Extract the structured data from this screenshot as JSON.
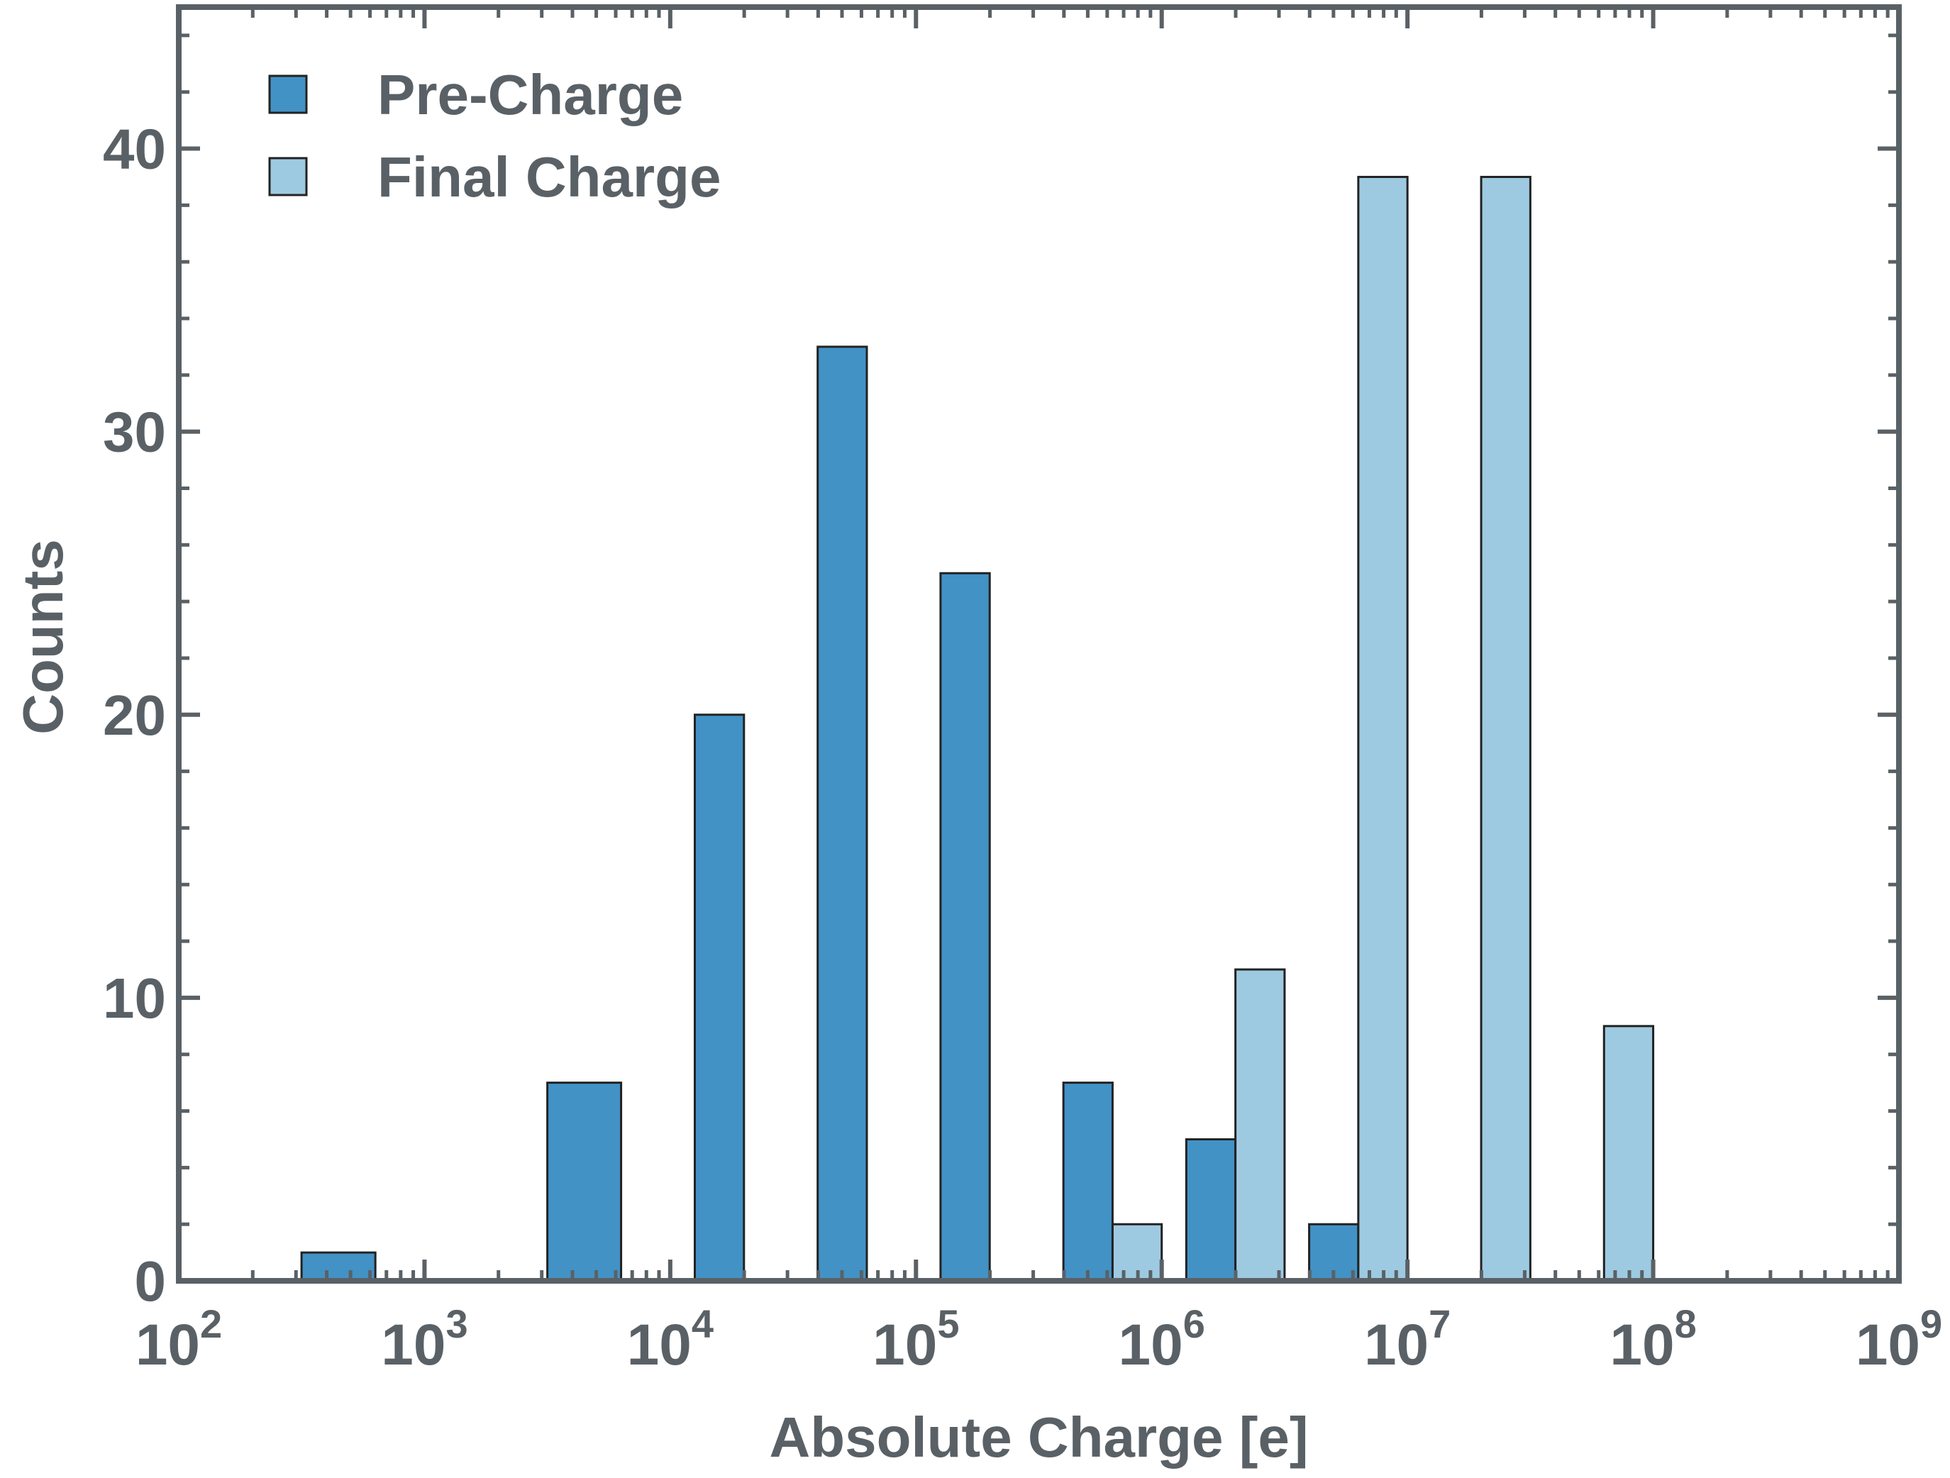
{
  "chart_data": {
    "type": "bar",
    "title": "",
    "xlabel": "Absolute Charge [e]",
    "ylabel": "Counts",
    "x_scale": "log10",
    "xlim": [
      100,
      1000000000
    ],
    "ylim": [
      0,
      45
    ],
    "x_ticks": [
      {
        "base": "10",
        "exp": "2",
        "value": 100
      },
      {
        "base": "10",
        "exp": "3",
        "value": 1000
      },
      {
        "base": "10",
        "exp": "4",
        "value": 10000
      },
      {
        "base": "10",
        "exp": "5",
        "value": 100000
      },
      {
        "base": "10",
        "exp": "6",
        "value": 1000000
      },
      {
        "base": "10",
        "exp": "7",
        "value": 10000000
      },
      {
        "base": "10",
        "exp": "8",
        "value": 100000000
      },
      {
        "base": "10",
        "exp": "9",
        "value": 1000000000
      }
    ],
    "y_ticks": [
      "0",
      "10",
      "20",
      "30",
      "40"
    ],
    "grid": false,
    "legend_position": "top-left",
    "frame_color": "#5a6166",
    "series": [
      {
        "name": "Pre-Charge",
        "color": "#4292c6",
        "bars": [
          {
            "x_start": 316,
            "x_end": 631,
            "count": 1
          },
          {
            "x_start": 3162,
            "x_end": 6310,
            "count": 7
          },
          {
            "x_start": 12589,
            "x_end": 19953,
            "count": 20
          },
          {
            "x_start": 39811,
            "x_end": 63096,
            "count": 33
          },
          {
            "x_start": 125893,
            "x_end": 199526,
            "count": 25
          },
          {
            "x_start": 398107,
            "x_end": 630957,
            "count": 7
          },
          {
            "x_start": 1258925,
            "x_end": 1995262,
            "count": 5
          },
          {
            "x_start": 3981072,
            "x_end": 6309573,
            "count": 2
          }
        ]
      },
      {
        "name": "Final Charge",
        "color": "#9ecae1",
        "bars": [
          {
            "x_start": 630957,
            "x_end": 1000000,
            "count": 2
          },
          {
            "x_start": 1995262,
            "x_end": 3162278,
            "count": 11
          },
          {
            "x_start": 6309573,
            "x_end": 10000000,
            "count": 39
          },
          {
            "x_start": 19952623,
            "x_end": 31622777,
            "count": 39
          },
          {
            "x_start": 63095734,
            "x_end": 100000000,
            "count": 9
          }
        ]
      }
    ]
  }
}
